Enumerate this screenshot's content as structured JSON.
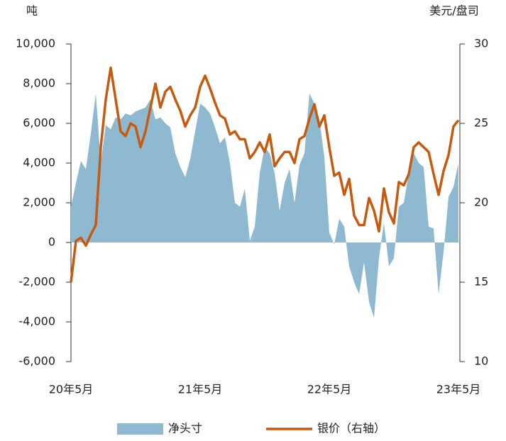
{
  "chart_data": {
    "type": "area",
    "y_label": "吨",
    "y2_label": "美元/盘司",
    "categories": [
      "20年5月",
      null,
      null,
      null,
      null,
      null,
      null,
      null,
      null,
      null,
      null,
      null,
      null,
      null,
      null,
      null,
      null,
      null,
      null,
      null,
      null,
      null,
      null,
      null,
      null,
      null,
      "21年5月",
      null,
      null,
      null,
      null,
      null,
      null,
      null,
      null,
      null,
      null,
      null,
      null,
      null,
      null,
      null,
      null,
      null,
      null,
      null,
      null,
      null,
      null,
      null,
      null,
      null,
      "22年5月",
      null,
      null,
      null,
      null,
      null,
      null,
      null,
      null,
      null,
      null,
      null,
      null,
      null,
      null,
      null,
      null,
      null,
      null,
      null,
      null,
      null,
      null,
      null,
      null,
      null,
      "23年5月"
    ],
    "series": [
      {
        "name": "净头寸",
        "type": "area",
        "color": "#8fb9d0",
        "values": [
          1800,
          3000,
          4100,
          3700,
          5500,
          7500,
          4000,
          5900,
          5700,
          6300,
          6200,
          6500,
          6400,
          6600,
          6700,
          6800,
          7200,
          6200,
          6300,
          6000,
          5800,
          4500,
          3800,
          3300,
          4200,
          5600,
          7000,
          6800,
          6500,
          5800,
          5000,
          5300,
          4000,
          2000,
          1800,
          2700,
          100,
          800,
          3500,
          4800,
          4500,
          3500,
          1600,
          3000,
          3700,
          2000,
          3900,
          4500,
          7500,
          7000,
          6200,
          4300,
          500,
          -100,
          1200,
          800,
          -1200,
          -2000,
          -2600,
          -1000,
          -3000,
          -3800,
          -800,
          1000,
          -1200,
          -800,
          1800,
          2000,
          3500,
          4500,
          4000,
          3800,
          800,
          700,
          -2600,
          -500,
          2300,
          2800,
          4000
        ]
      },
      {
        "name": "银价（右轴）",
        "type": "line",
        "axis": "y2",
        "color": "#c55a11",
        "values": [
          15,
          17.6,
          17.8,
          17.3,
          18,
          18.6,
          23.5,
          26.5,
          28.5,
          26.5,
          24.5,
          24.2,
          25,
          24.8,
          23.5,
          24.5,
          26,
          27.5,
          26,
          27,
          27.3,
          26.5,
          25.8,
          24.8,
          25.5,
          26,
          27.3,
          28,
          27.2,
          26.3,
          25.5,
          25.3,
          24.3,
          24.5,
          24,
          24,
          22.8,
          23.2,
          23.8,
          23.2,
          24.3,
          22.3,
          22.8,
          23.2,
          23.2,
          22.5,
          24,
          24.2,
          25.3,
          26.2,
          24.8,
          25.5,
          23.5,
          21.7,
          21.9,
          20.5,
          21.5,
          19.2,
          18.6,
          18.6,
          20.3,
          19.5,
          18.2,
          20.9,
          19.4,
          18.7,
          21.3,
          21.1,
          21.8,
          23.5,
          23.8,
          23.5,
          23.2,
          21.8,
          20.5,
          22,
          23,
          24.8,
          25.2
        ]
      }
    ],
    "ylim": [
      -6000,
      10000
    ],
    "yticks": [
      {
        "value": -6000,
        "label": "-6,000"
      },
      {
        "value": -4000,
        "label": "-4,000"
      },
      {
        "value": -2000,
        "label": "-2,000"
      },
      0,
      {
        "value": 2000,
        "label": "2,000"
      },
      {
        "value": 4000,
        "label": "4,000"
      },
      {
        "value": 6000,
        "label": "6,000"
      },
      {
        "value": 8000,
        "label": "8,000"
      },
      {
        "value": 10000,
        "label": "10,000"
      }
    ],
    "y2lim": [
      10,
      30
    ],
    "y2ticks": [
      10,
      15,
      20,
      25,
      30
    ]
  }
}
